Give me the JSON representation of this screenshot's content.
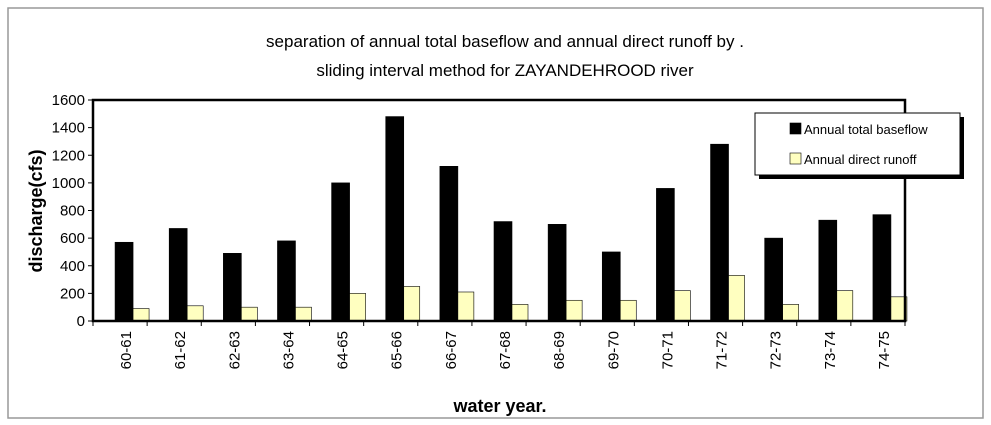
{
  "chart_data": {
    "type": "bar",
    "title": [
      "separation of annual total baseflow and annual direct runoff by  .",
      "sliding interval method for ZAYANDEHROOD river"
    ],
    "x_label": "water year.",
    "y_label": "discharge(cfs)",
    "categories": [
      "60-61",
      "61-62",
      "62-63",
      "63-64",
      "64-65",
      "65-66",
      "66-67",
      "67-68",
      "68-69",
      "69-70",
      "70-71",
      "71-72",
      "72-73",
      "73-74",
      "74-75"
    ],
    "series": [
      {
        "name": "Annual total baseflow",
        "color": "#000000",
        "values": [
          570,
          670,
          490,
          580,
          1000,
          1480,
          1120,
          720,
          700,
          500,
          960,
          1280,
          600,
          730,
          770
        ]
      },
      {
        "name": "Annual direct runoff",
        "color": "#ffffc0",
        "values": [
          90,
          110,
          100,
          100,
          200,
          250,
          210,
          120,
          150,
          150,
          220,
          330,
          120,
          220,
          175
        ]
      }
    ],
    "ylim": [
      0,
      1600
    ],
    "yticks": [
      0,
      200,
      400,
      600,
      800,
      1000,
      1200,
      1400,
      1600
    ],
    "legend": "upper right"
  }
}
